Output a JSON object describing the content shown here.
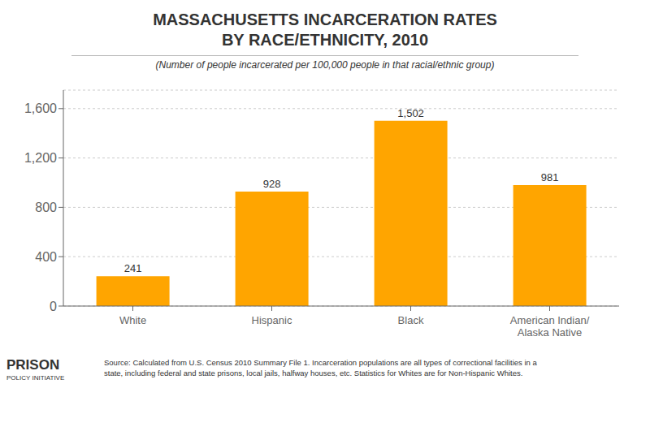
{
  "chart_data": {
    "type": "bar",
    "title": "MASSACHUSETTS INCARCERATION RATES\nBY RACE/ETHNICITY, 2010",
    "subtitle": "(Number of people incarcerated per 100,000 people in that racial/ethnic group)",
    "categories": [
      "White",
      "Hispanic",
      "Black",
      "American Indian/\nAlaska Native"
    ],
    "values": [
      241,
      928,
      1502,
      981
    ],
    "value_labels": [
      "241",
      "928",
      "1,502",
      "981"
    ],
    "data_labels": true,
    "color": "#FFA500",
    "ylim": [
      0,
      1750
    ],
    "yticks": [
      0,
      400,
      800,
      {
        "value": 1200,
        "label": "1,200"
      },
      {
        "value": 1600,
        "label": "1,600"
      }
    ],
    "grid": true,
    "annotations": [
      "Source: Calculated from U.S. Census 2010 Summary File 1. Incarceration populations are all types of correctional facilities in a\nstate, including federal and state prisons, local jails, halfway houses, etc. Statistics for Whites are for Non-Hispanic Whites.",
      "PRISON",
      "POLICY INITIATIVE"
    ]
  }
}
